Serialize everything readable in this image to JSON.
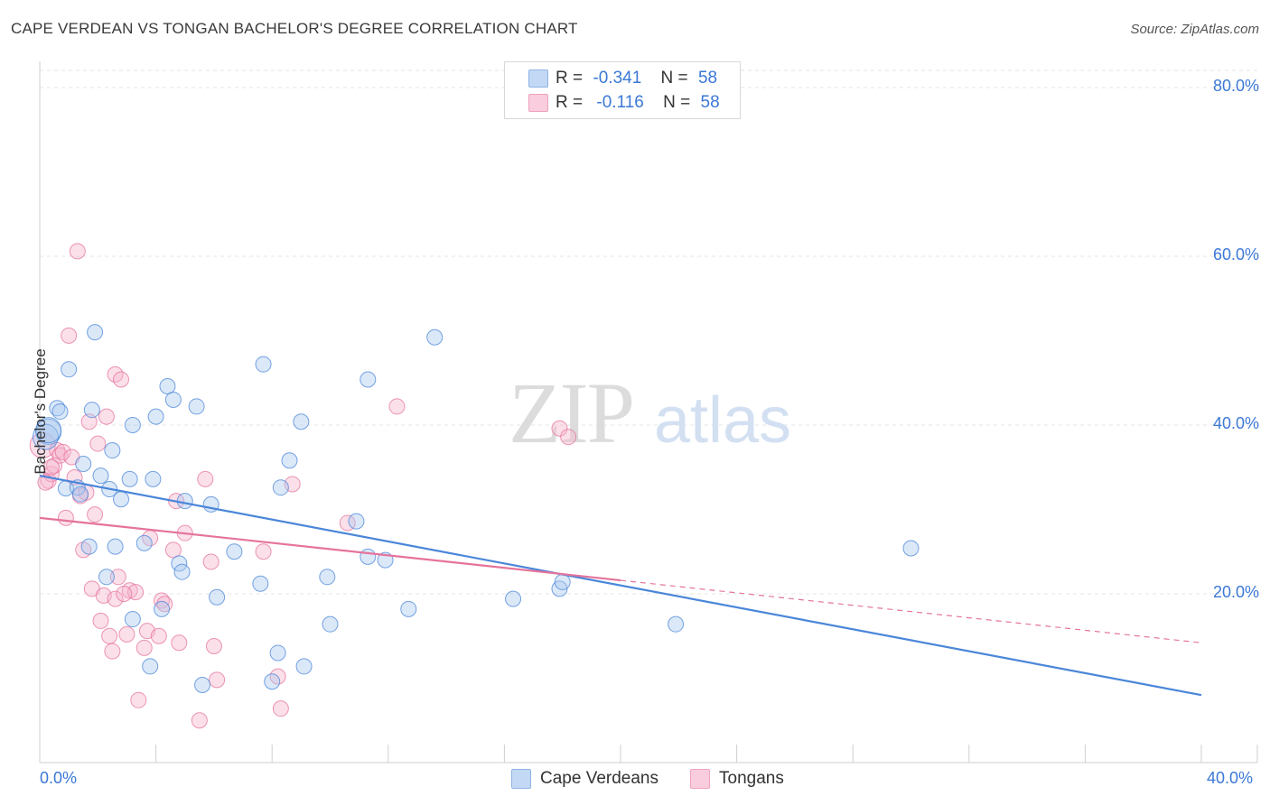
{
  "title": "CAPE VERDEAN VS TONGAN BACHELOR'S DEGREE CORRELATION CHART",
  "source": "Source: ZipAtlas.com",
  "watermark": {
    "zip": "ZIP",
    "atlas": "atlas"
  },
  "legend_top": [
    {
      "r_label": "R =",
      "r_value": "-0.341",
      "n_label": "N =",
      "n_value": "58",
      "color": "#a9c7ef"
    },
    {
      "r_label": "R =",
      "r_value": "-0.116",
      "n_label": "N =",
      "n_value": "58",
      "color": "#f5b6cc"
    }
  ],
  "legend_bottom": [
    {
      "label": "Cape Verdeans",
      "color": "#a9c7ef"
    },
    {
      "label": "Tongans",
      "color": "#f5b6cc"
    }
  ],
  "chart_data": {
    "type": "scatter",
    "title": "CAPE VERDEAN VS TONGAN BACHELOR'S DEGREE CORRELATION CHART",
    "xlabel": "",
    "ylabel": "Bachelor's Degree",
    "xlim": [
      0,
      40
    ],
    "ylim": [
      0,
      80
    ],
    "x_tick_labels": [
      "0.0%",
      "40.0%"
    ],
    "y_ticks": [
      20,
      40,
      60,
      80
    ],
    "y_tick_labels": [
      "20.0%",
      "40.0%",
      "60.0%",
      "80.0%"
    ],
    "grid": true,
    "series": [
      {
        "name": "Cape Verdeans",
        "color": "#4a86d9",
        "fill": "#a9c7ef",
        "r": -0.341,
        "n": 58,
        "trend": {
          "x0": 0,
          "y0": 34.0,
          "x1": 40,
          "y1": 8.0,
          "solid_to": 40
        },
        "points": [
          [
            0.3,
            39.2
          ],
          [
            0.2,
            38.6
          ],
          [
            0.6,
            42.0
          ],
          [
            0.7,
            41.6
          ],
          [
            1.0,
            46.6
          ],
          [
            1.9,
            51.0
          ],
          [
            0.9,
            32.5
          ],
          [
            1.3,
            32.6
          ],
          [
            1.4,
            31.8
          ],
          [
            1.5,
            35.4
          ],
          [
            1.7,
            25.6
          ],
          [
            1.8,
            41.8
          ],
          [
            2.1,
            34.0
          ],
          [
            2.3,
            22.0
          ],
          [
            2.4,
            32.4
          ],
          [
            2.5,
            37.0
          ],
          [
            2.6,
            25.6
          ],
          [
            2.8,
            31.2
          ],
          [
            3.1,
            33.6
          ],
          [
            3.2,
            40.0
          ],
          [
            3.2,
            17.0
          ],
          [
            3.6,
            26.0
          ],
          [
            3.8,
            11.4
          ],
          [
            3.9,
            33.6
          ],
          [
            4.0,
            41.0
          ],
          [
            4.2,
            18.2
          ],
          [
            4.4,
            44.6
          ],
          [
            4.6,
            43.0
          ],
          [
            4.8,
            23.6
          ],
          [
            4.9,
            22.6
          ],
          [
            5.0,
            31.0
          ],
          [
            5.4,
            42.2
          ],
          [
            5.6,
            9.2
          ],
          [
            5.9,
            30.6
          ],
          [
            6.1,
            19.6
          ],
          [
            6.7,
            25.0
          ],
          [
            7.6,
            21.2
          ],
          [
            7.7,
            47.2
          ],
          [
            8.0,
            9.6
          ],
          [
            8.2,
            13.0
          ],
          [
            8.3,
            32.6
          ],
          [
            8.6,
            35.8
          ],
          [
            9.0,
            40.4
          ],
          [
            9.1,
            11.4
          ],
          [
            9.9,
            22.0
          ],
          [
            10.0,
            16.4
          ],
          [
            10.9,
            28.6
          ],
          [
            11.3,
            45.4
          ],
          [
            11.3,
            24.4
          ],
          [
            11.9,
            24.0
          ],
          [
            12.7,
            18.2
          ],
          [
            13.6,
            50.4
          ],
          [
            16.3,
            19.4
          ],
          [
            17.9,
            20.6
          ],
          [
            18.0,
            21.4
          ],
          [
            21.9,
            16.4
          ],
          [
            30.0,
            25.4
          ],
          [
            0.3,
            39.4
          ]
        ]
      },
      {
        "name": "Tongans",
        "color": "#e5739c",
        "fill": "#f5b6cc",
        "r": -0.116,
        "n": 58,
        "trend": {
          "x0": 0,
          "y0": 29.0,
          "x1": 40,
          "y1": 14.2,
          "solid_to": 20
        },
        "points": [
          [
            0.1,
            37.6
          ],
          [
            0.3,
            33.4
          ],
          [
            0.4,
            34.2
          ],
          [
            0.5,
            35.2
          ],
          [
            0.6,
            37.0
          ],
          [
            0.7,
            36.4
          ],
          [
            0.8,
            36.8
          ],
          [
            0.9,
            29.0
          ],
          [
            1.0,
            50.6
          ],
          [
            1.2,
            33.8
          ],
          [
            1.3,
            60.6
          ],
          [
            1.4,
            31.6
          ],
          [
            1.5,
            25.2
          ],
          [
            1.6,
            32.0
          ],
          [
            1.7,
            40.4
          ],
          [
            1.8,
            20.6
          ],
          [
            1.9,
            29.4
          ],
          [
            2.0,
            37.8
          ],
          [
            2.1,
            16.8
          ],
          [
            2.2,
            19.8
          ],
          [
            2.3,
            41.0
          ],
          [
            2.4,
            15.0
          ],
          [
            2.5,
            13.2
          ],
          [
            2.6,
            19.4
          ],
          [
            2.6,
            46.0
          ],
          [
            2.7,
            22.0
          ],
          [
            2.8,
            45.4
          ],
          [
            3.0,
            15.2
          ],
          [
            3.1,
            20.4
          ],
          [
            3.3,
            20.2
          ],
          [
            3.4,
            7.4
          ],
          [
            3.6,
            13.6
          ],
          [
            3.7,
            15.6
          ],
          [
            3.8,
            26.6
          ],
          [
            4.1,
            15.0
          ],
          [
            4.2,
            19.2
          ],
          [
            4.6,
            25.2
          ],
          [
            4.7,
            31.0
          ],
          [
            4.8,
            14.2
          ],
          [
            5.0,
            27.2
          ],
          [
            5.5,
            5.0
          ],
          [
            5.7,
            33.6
          ],
          [
            5.9,
            23.8
          ],
          [
            6.0,
            13.8
          ],
          [
            6.1,
            9.8
          ],
          [
            7.7,
            25.0
          ],
          [
            8.2,
            10.2
          ],
          [
            8.3,
            6.4
          ],
          [
            8.7,
            33.0
          ],
          [
            10.6,
            28.4
          ],
          [
            12.3,
            42.2
          ],
          [
            17.9,
            39.6
          ],
          [
            18.2,
            38.6
          ],
          [
            0.2,
            33.2
          ],
          [
            0.4,
            35.0
          ],
          [
            1.1,
            36.2
          ],
          [
            2.9,
            20.0
          ],
          [
            4.3,
            18.8
          ]
        ]
      }
    ]
  }
}
